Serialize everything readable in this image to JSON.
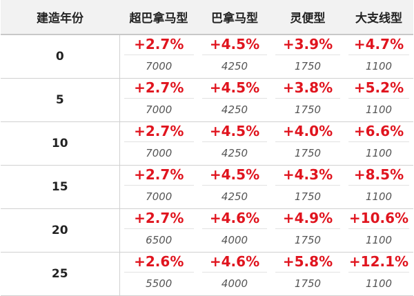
{
  "header": {
    "year_col": "建造年份",
    "types": [
      "超巴拿马型",
      "巴拿马型",
      "灵便型",
      "大支线型"
    ]
  },
  "rows": [
    {
      "year": "0",
      "cells": [
        {
          "pct": "+2.7%",
          "price": "7000"
        },
        {
          "pct": "+4.5%",
          "price": "4250"
        },
        {
          "pct": "+3.9%",
          "price": "1750"
        },
        {
          "pct": "+4.7%",
          "price": "1100"
        }
      ]
    },
    {
      "year": "5",
      "cells": [
        {
          "pct": "+2.7%",
          "price": "7000"
        },
        {
          "pct": "+4.5%",
          "price": "4250"
        },
        {
          "pct": "+3.8%",
          "price": "1750"
        },
        {
          "pct": "+5.2%",
          "price": "1100"
        }
      ]
    },
    {
      "year": "10",
      "cells": [
        {
          "pct": "+2.7%",
          "price": "7000"
        },
        {
          "pct": "+4.5%",
          "price": "4250"
        },
        {
          "pct": "+4.0%",
          "price": "1750"
        },
        {
          "pct": "+6.6%",
          "price": "1100"
        }
      ]
    },
    {
      "year": "15",
      "cells": [
        {
          "pct": "+2.7%",
          "price": "7000"
        },
        {
          "pct": "+4.5%",
          "price": "4250"
        },
        {
          "pct": "+4.3%",
          "price": "1750"
        },
        {
          "pct": "+8.5%",
          "price": "1100"
        }
      ]
    },
    {
      "year": "20",
      "cells": [
        {
          "pct": "+2.7%",
          "price": "6500"
        },
        {
          "pct": "+4.6%",
          "price": "4000"
        },
        {
          "pct": "+4.9%",
          "price": "1750"
        },
        {
          "pct": "+10.6%",
          "price": "1100"
        }
      ]
    },
    {
      "year": "25",
      "cells": [
        {
          "pct": "+2.6%",
          "price": "5500"
        },
        {
          "pct": "+4.6%",
          "price": "4000"
        },
        {
          "pct": "+5.8%",
          "price": "1750"
        },
        {
          "pct": "+12.1%",
          "price": "1100"
        }
      ]
    }
  ],
  "colors": {
    "pct": "#e0141e",
    "header_bg": "#f2f2f2",
    "price_text": "#555555"
  }
}
